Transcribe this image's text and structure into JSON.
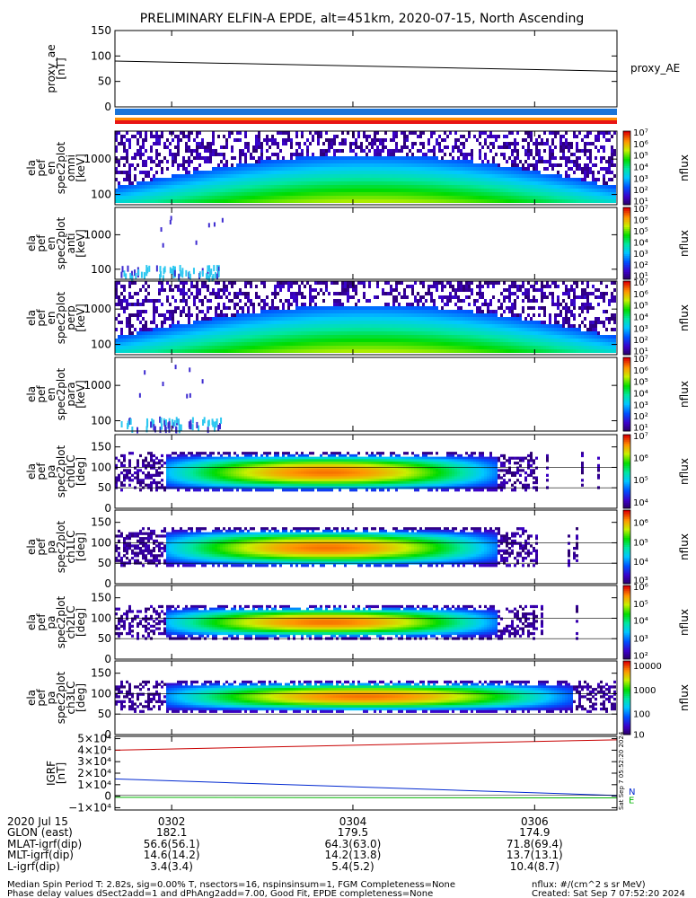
{
  "title": "PRELIMINARY ELFIN-A EPDE, alt=451km, 2020-07-15, North Ascending",
  "side_stamp": "Sat Sep  7 05:52:20 2024",
  "colors": {
    "bar_blue": "#1a74d8",
    "bar_orange": "#ff8c00",
    "bar_red": "#e81515",
    "igrf_red": "#c80000",
    "igrf_blue": "#0028d0",
    "igrf_green": "#00b400"
  },
  "chart_data": [
    {
      "type": "line",
      "title": "",
      "ylabel_lines": [
        "proxy_ae",
        "[nT]"
      ],
      "ylim": [
        0,
        150
      ],
      "yticks": [
        "150",
        "100",
        "50",
        "0"
      ],
      "ytick_values": [
        150,
        100,
        50,
        0
      ],
      "series": [
        {
          "name": "proxy_AE",
          "x": [
            0,
            1
          ],
          "values": [
            90,
            70
          ]
        }
      ]
    },
    {
      "type": "heatmap",
      "ylabel_lines": [
        "ela",
        "pef",
        "en",
        "spec2plot",
        "omni",
        "[keV]"
      ],
      "yticks": [
        "1000",
        "100"
      ],
      "ytick_frac": [
        0.38,
        0.86
      ],
      "colorbar": {
        "label": "nflux",
        "scale": "log",
        "ticks": [
          "10⁷",
          "10⁶",
          "10⁵",
          "10⁴",
          "10³",
          "10²",
          "10¹"
        ],
        "tick_frac": [
          0.0,
          0.156,
          0.313,
          0.469,
          0.625,
          0.78,
          0.93
        ]
      },
      "center": 0.58,
      "bg_frac": 0.95,
      "peak": 0.75
    },
    {
      "type": "heatmap",
      "ylabel_lines": [
        "ela",
        "pef",
        "en",
        "spec2plot",
        "anti",
        "[keV]"
      ],
      "yticks": [
        "1000",
        "100"
      ],
      "ytick_frac": [
        0.38,
        0.86
      ],
      "colorbar": {
        "label": "nflux",
        "scale": "log",
        "ticks": [
          "10⁷",
          "10⁶",
          "10⁵",
          "10⁴",
          "10³",
          "10²",
          "10¹"
        ],
        "tick_frac": [
          0.0,
          0.156,
          0.313,
          0.469,
          0.625,
          0.78,
          0.93
        ]
      },
      "sparse": true
    },
    {
      "type": "heatmap",
      "ylabel_lines": [
        "ela",
        "pef",
        "en",
        "spec2plot",
        "perp",
        "[keV]"
      ],
      "yticks": [
        "1000",
        "100"
      ],
      "ytick_frac": [
        0.38,
        0.86
      ],
      "colorbar": {
        "label": "nflux",
        "scale": "log",
        "ticks": [
          "10⁷",
          "10⁶",
          "10⁵",
          "10⁴",
          "10³",
          "10²",
          "10¹"
        ],
        "tick_frac": [
          0.0,
          0.156,
          0.313,
          0.469,
          0.625,
          0.78,
          0.93
        ]
      },
      "center": 0.58,
      "bg_frac": 0.95,
      "peak": 0.75
    },
    {
      "type": "heatmap",
      "ylabel_lines": [
        "ela",
        "pef",
        "en",
        "spec2plot",
        "para",
        "[keV]"
      ],
      "yticks": [
        "1000",
        "100"
      ],
      "ytick_frac": [
        0.38,
        0.86
      ],
      "colorbar": {
        "label": "nflux",
        "scale": "log",
        "ticks": [
          "10⁷",
          "10⁶",
          "10⁵",
          "10⁴",
          "10³",
          "10²",
          "10¹"
        ],
        "tick_frac": [
          0.0,
          0.156,
          0.313,
          0.469,
          0.625,
          0.78,
          0.93
        ]
      },
      "sparse": true
    },
    {
      "type": "heatmap",
      "ylabel_lines": [
        "ela",
        "pef",
        "pa",
        "spec2plot",
        "ch0LC",
        "[deg]"
      ],
      "yticks": [
        "150",
        "100",
        "50",
        "0"
      ],
      "ytick_values": [
        150,
        100,
        50,
        0
      ],
      "ylim": [
        0,
        180
      ],
      "colorbar": {
        "label": "nflux",
        "scale": "log",
        "ticks": [
          "10⁷",
          "10⁶",
          "10⁵",
          "10⁴"
        ],
        "tick_frac": [
          0.0,
          0.3,
          0.6,
          0.9
        ]
      },
      "band": [
        40,
        135
      ],
      "x_range": [
        0.0,
        0.84
      ]
    },
    {
      "type": "heatmap",
      "ylabel_lines": [
        "ela",
        "pef",
        "pa",
        "spec2plot",
        "ch1LC",
        "[deg]"
      ],
      "yticks": [
        "150",
        "100",
        "50",
        "0"
      ],
      "ytick_values": [
        150,
        100,
        50,
        0
      ],
      "ylim": [
        0,
        180
      ],
      "colorbar": {
        "label": "nflux",
        "scale": "log",
        "ticks": [
          "10⁶",
          "10⁵",
          "10⁴",
          "10³"
        ],
        "tick_frac": [
          0.15,
          0.42,
          0.68,
          0.93
        ]
      },
      "band": [
        40,
        135
      ],
      "x_range": [
        0.0,
        0.84
      ]
    },
    {
      "type": "heatmap",
      "ylabel_lines": [
        "ela",
        "pef",
        "pa",
        "spec2plot",
        "ch2LC",
        "[deg]"
      ],
      "yticks": [
        "150",
        "100",
        "50",
        "0"
      ],
      "ytick_values": [
        150,
        100,
        50,
        0
      ],
      "ylim": [
        0,
        180
      ],
      "colorbar": {
        "label": "nflux",
        "scale": "log",
        "ticks": [
          "10⁶",
          "10⁵",
          "10⁴",
          "10³",
          "10²"
        ],
        "tick_frac": [
          0.0,
          0.23,
          0.46,
          0.7,
          0.93
        ]
      },
      "band": [
        50,
        130
      ],
      "x_range": [
        0.0,
        0.84
      ]
    },
    {
      "type": "heatmap",
      "ylabel_lines": [
        "ela",
        "pef",
        "pa",
        "spec2plot",
        "ch3LC",
        "[deg]"
      ],
      "yticks": [
        "150",
        "100",
        "50",
        "0"
      ],
      "ytick_values": [
        150,
        100,
        50,
        0
      ],
      "ylim": [
        0,
        180
      ],
      "colorbar": {
        "label": "nflux",
        "scale": "log",
        "ticks": [
          "10000",
          "1000",
          "100",
          "10"
        ],
        "tick_frac": [
          0.05,
          0.38,
          0.7,
          0.98
        ]
      },
      "band": [
        55,
        130
      ],
      "x_range": [
        0.0,
        0.99
      ]
    },
    {
      "type": "line",
      "ylabel_lines": [
        "IGRF",
        "[nT]"
      ],
      "yticks": [
        "5×10⁴",
        "4×10⁴",
        "3×10⁴",
        "2×10⁴",
        "1×10⁴",
        "0",
        "−1×10⁴"
      ],
      "ytick_values": [
        50000,
        40000,
        30000,
        20000,
        10000,
        0,
        -10000
      ],
      "ylim": [
        -12000,
        52000
      ],
      "series": [
        {
          "name": "",
          "color": "#c80000",
          "x": [
            0,
            1
          ],
          "values": [
            40000,
            49000
          ]
        },
        {
          "name": "N",
          "color": "#0028d0",
          "x": [
            0,
            1
          ],
          "values": [
            15000,
            600
          ]
        },
        {
          "name": "E",
          "color": "#00b400",
          "x": [
            0,
            1
          ],
          "values": [
            -1000,
            -1500
          ]
        }
      ]
    }
  ],
  "xaxis": {
    "row_labels": [
      "2020 Jul 15",
      "GLON (east)",
      "MLAT-igrf(dip)",
      "MLT-igrf(dip)",
      "L-igrf(dip)"
    ],
    "columns": [
      {
        "time": "0302",
        "glon": "182.1",
        "mlat": "56.6(56.1)",
        "mlt": "14.6(14.2)",
        "l": "3.4(3.4)",
        "frac": 0.113
      },
      {
        "time": "0304",
        "glon": "179.5",
        "mlat": "64.3(63.0)",
        "mlt": "14.2(13.8)",
        "l": "5.4(5.2)",
        "frac": 0.474
      },
      {
        "time": "0306",
        "glon": "174.9",
        "mlat": "71.8(69.4)",
        "mlt": "13.7(13.1)",
        "l": "10.4(8.7)",
        "frac": 0.836
      }
    ]
  },
  "footer": {
    "line1": "Median Spin Period T: 2.82s, sig=0.00% T, nsectors=16, nspinsinsum=1, FGM Completeness=None",
    "line2": "Phase delay values dSect2add=1 and dPhAng2add=7.00, Good Fit, EPDE completeness=None",
    "right1": "nflux: #/(cm^2 s sr MeV)",
    "right2": "Created: Sat Sep  7 07:52:20 2024"
  }
}
